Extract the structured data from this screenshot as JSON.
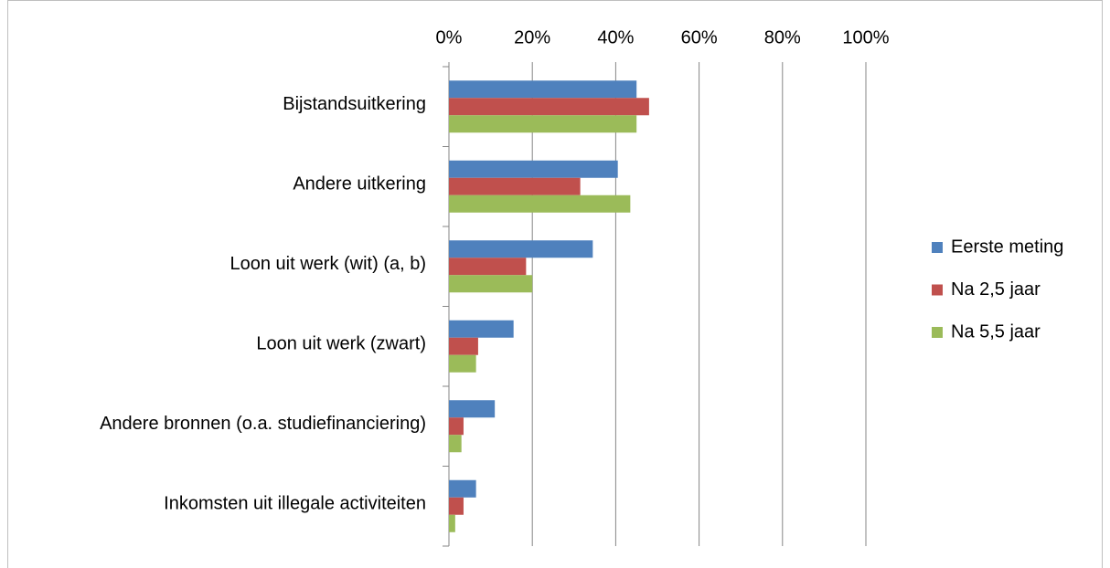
{
  "chart_data": {
    "type": "hbar",
    "categories": [
      "Bijstandsuitkering",
      "Andere uitkering",
      "Loon uit werk (wit) (a, b)",
      "Loon uit werk (zwart)",
      "Andere bronnen (o.a. studiefinanciering)",
      "Inkomsten uit illegale activiteiten"
    ],
    "series": [
      {
        "name": "Eerste meting",
        "color": "#4f81bd",
        "values": [
          45,
          40.5,
          34.5,
          15.5,
          11,
          6.5
        ]
      },
      {
        "name": "Na 2,5 jaar",
        "color": "#c0504d",
        "values": [
          48,
          31.5,
          18.5,
          7,
          3.5,
          3.5
        ]
      },
      {
        "name": "Na 5,5 jaar",
        "color": "#9bbb59",
        "values": [
          45,
          43.5,
          20,
          6.5,
          3,
          1.5
        ]
      }
    ],
    "xlim": [
      0,
      100
    ],
    "xticks": [
      {
        "value": 0,
        "label": "0%"
      },
      {
        "value": 20,
        "label": "20%"
      },
      {
        "value": 40,
        "label": "40%"
      },
      {
        "value": 60,
        "label": "60%"
      },
      {
        "value": 80,
        "label": "80%"
      },
      {
        "value": 100,
        "label": "100%"
      }
    ],
    "grid": true,
    "legend": "right"
  }
}
